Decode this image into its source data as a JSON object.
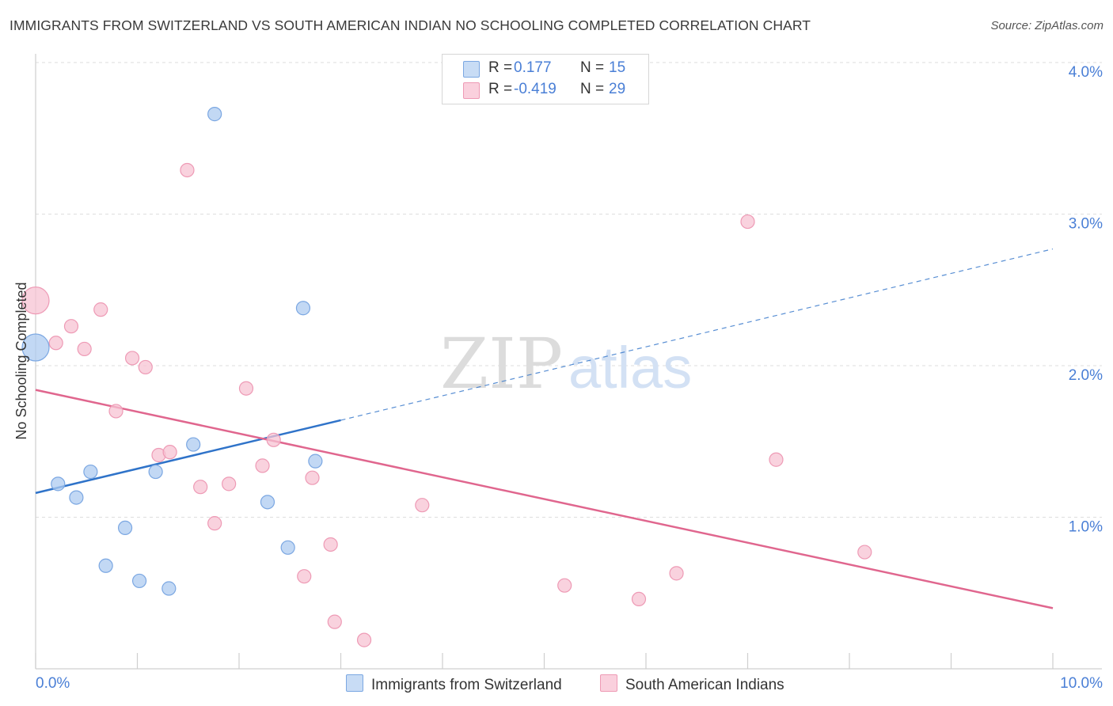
{
  "title": "IMMIGRANTS FROM SWITZERLAND VS SOUTH AMERICAN INDIAN NO SCHOOLING COMPLETED CORRELATION CHART",
  "source": "Source: ZipAtlas.com",
  "watermark": {
    "zip": "ZIP",
    "atlas": "atlas"
  },
  "legend": {
    "rows": [
      {
        "r_label": "R =",
        "r_value": "0.177",
        "n_label": "N =",
        "n_value": "15",
        "color": "#aecbf0"
      },
      {
        "r_label": "R =",
        "r_value": "-0.419",
        "n_label": "N =",
        "n_value": "29",
        "color": "#f7bfd0"
      }
    ]
  },
  "bottom_legend": {
    "series1": "Immigrants from Switzerland",
    "series2": "South American Indians"
  },
  "colors": {
    "blue_fill": "#aecbf0",
    "blue_stroke": "#7ba7e2",
    "blue_line": "#2f73c9",
    "pink_fill": "#f7c3d3",
    "pink_stroke": "#ee9ab5",
    "pink_line": "#e0668e",
    "tick_label": "#4a7fd6",
    "grid": "#dedede"
  },
  "chart_data": {
    "type": "scatter",
    "title": "IMMIGRANTS FROM SWITZERLAND VS SOUTH AMERICAN INDIAN NO SCHOOLING COMPLETED CORRELATION CHART",
    "xlabel": "",
    "ylabel": "No Schooling Completed",
    "xlim": [
      0,
      10
    ],
    "ylim": [
      0,
      4.1
    ],
    "x_tick_labels": [
      "0.0%",
      "10.0%"
    ],
    "y_ticks": [
      1,
      2,
      3,
      4
    ],
    "y_tick_labels": [
      "1.0%",
      "2.0%",
      "3.0%",
      "4.0%"
    ],
    "series": [
      {
        "name": "Immigrants from Switzerland",
        "points": [
          {
            "x": 0.0,
            "y": 2.12,
            "size": "large"
          },
          {
            "x": 0.22,
            "y": 1.22
          },
          {
            "x": 0.4,
            "y": 1.13
          },
          {
            "x": 0.54,
            "y": 1.3
          },
          {
            "x": 0.69,
            "y": 0.68
          },
          {
            "x": 0.88,
            "y": 0.93
          },
          {
            "x": 1.02,
            "y": 0.58
          },
          {
            "x": 1.18,
            "y": 1.3
          },
          {
            "x": 1.31,
            "y": 0.53
          },
          {
            "x": 1.55,
            "y": 1.48
          },
          {
            "x": 1.76,
            "y": 3.66
          },
          {
            "x": 2.28,
            "y": 1.1
          },
          {
            "x": 2.48,
            "y": 0.8
          },
          {
            "x": 2.63,
            "y": 2.38
          },
          {
            "x": 2.75,
            "y": 1.37
          }
        ],
        "trend": {
          "x0": 0.0,
          "y0": 1.16,
          "x1": 3.0,
          "y1": 1.64,
          "dashed_to_x": 10.0,
          "dashed_to_y": 2.77
        }
      },
      {
        "name": "South American Indians",
        "points": [
          {
            "x": 0.0,
            "y": 2.43,
            "size": "large"
          },
          {
            "x": 0.2,
            "y": 2.15
          },
          {
            "x": 0.35,
            "y": 2.26
          },
          {
            "x": 0.48,
            "y": 2.11
          },
          {
            "x": 0.64,
            "y": 2.37
          },
          {
            "x": 0.79,
            "y": 1.7
          },
          {
            "x": 0.95,
            "y": 2.05
          },
          {
            "x": 1.08,
            "y": 1.99
          },
          {
            "x": 1.21,
            "y": 1.41
          },
          {
            "x": 1.32,
            "y": 1.43
          },
          {
            "x": 1.49,
            "y": 3.29
          },
          {
            "x": 1.62,
            "y": 1.2
          },
          {
            "x": 1.76,
            "y": 0.96
          },
          {
            "x": 1.9,
            "y": 1.22
          },
          {
            "x": 2.07,
            "y": 1.85
          },
          {
            "x": 2.23,
            "y": 1.34
          },
          {
            "x": 2.34,
            "y": 1.51
          },
          {
            "x": 2.64,
            "y": 0.61
          },
          {
            "x": 2.72,
            "y": 1.26
          },
          {
            "x": 2.9,
            "y": 0.82
          },
          {
            "x": 2.94,
            "y": 0.31
          },
          {
            "x": 3.23,
            "y": 0.19
          },
          {
            "x": 3.8,
            "y": 1.08
          },
          {
            "x": 5.2,
            "y": 0.55
          },
          {
            "x": 5.93,
            "y": 0.46
          },
          {
            "x": 6.3,
            "y": 0.63
          },
          {
            "x": 7.0,
            "y": 2.95
          },
          {
            "x": 7.28,
            "y": 1.38
          },
          {
            "x": 8.15,
            "y": 0.77
          }
        ],
        "trend": {
          "x0": 0.0,
          "y0": 1.84,
          "x1": 10.0,
          "y1": 0.4
        }
      }
    ]
  }
}
